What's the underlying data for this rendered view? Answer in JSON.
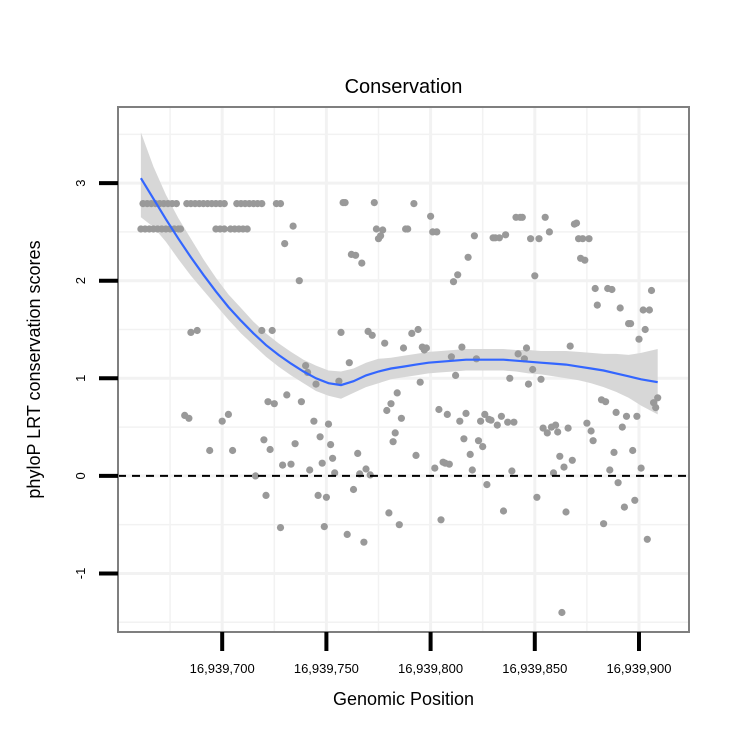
{
  "chart_data": {
    "type": "scatter",
    "title": "Conservation",
    "xlabel": "Genomic Position",
    "ylabel": "phyloP LRT conservation scores",
    "xlim": [
      16939650,
      16939924
    ],
    "ylim": [
      -1.6,
      3.78
    ],
    "x_ticks": [
      16939700,
      16939750,
      16939800,
      16939850,
      16939900
    ],
    "x_tick_labels": [
      "16,939,700",
      "16,939,750",
      "16,939,800",
      "16,939,850",
      "16,939,900"
    ],
    "y_ticks": [
      -1,
      0,
      1,
      2,
      3
    ],
    "y_tick_labels": [
      "-1",
      "0",
      "1",
      "2",
      "3"
    ],
    "reference_line": {
      "y": 0,
      "style": "dashed"
    },
    "grid": true,
    "colors": {
      "points": "#999999",
      "smooth": "#3366ff",
      "ribbon": "#d5d5d5",
      "grid": "#f2f2f2",
      "frame": "#7f7f7f"
    },
    "points": [
      [
        16939661,
        2.53
      ],
      [
        16939662,
        2.79
      ],
      [
        16939663,
        2.53
      ],
      [
        16939664,
        2.79
      ],
      [
        16939665,
        2.53
      ],
      [
        16939666,
        2.79
      ],
      [
        16939667,
        2.53
      ],
      [
        16939668,
        2.79
      ],
      [
        16939669,
        2.53
      ],
      [
        16939670,
        2.79
      ],
      [
        16939671,
        2.53
      ],
      [
        16939672,
        2.79
      ],
      [
        16939673,
        2.53
      ],
      [
        16939674,
        2.79
      ],
      [
        16939675,
        2.53
      ],
      [
        16939676,
        2.79
      ],
      [
        16939677,
        2.53
      ],
      [
        16939678,
        2.79
      ],
      [
        16939679,
        2.53
      ],
      [
        16939680,
        2.53
      ],
      [
        16939683,
        2.79
      ],
      [
        16939685,
        2.79
      ],
      [
        16939687,
        2.79
      ],
      [
        16939689,
        2.79
      ],
      [
        16939691,
        2.79
      ],
      [
        16939693,
        2.79
      ],
      [
        16939695,
        2.79
      ],
      [
        16939697,
        2.79
      ],
      [
        16939699,
        2.79
      ],
      [
        16939701,
        2.79
      ],
      [
        16939697,
        2.53
      ],
      [
        16939699,
        2.53
      ],
      [
        16939701,
        2.53
      ],
      [
        16939704,
        2.53
      ],
      [
        16939706,
        2.53
      ],
      [
        16939708,
        2.53
      ],
      [
        16939710,
        2.53
      ],
      [
        16939712,
        2.53
      ],
      [
        16939707,
        2.79
      ],
      [
        16939709,
        2.79
      ],
      [
        16939711,
        2.79
      ],
      [
        16939713,
        2.79
      ],
      [
        16939715,
        2.79
      ],
      [
        16939717,
        2.79
      ],
      [
        16939719,
        2.79
      ],
      [
        16939726,
        2.79
      ],
      [
        16939728,
        2.79
      ],
      [
        16939682,
        0.62
      ],
      [
        16939684,
        0.59
      ],
      [
        16939685,
        1.47
      ],
      [
        16939688,
        1.49
      ],
      [
        16939694,
        0.26
      ],
      [
        16939700,
        0.56
      ],
      [
        16939703,
        0.63
      ],
      [
        16939705,
        0.26
      ],
      [
        16939716,
        0.0
      ],
      [
        16939719,
        1.49
      ],
      [
        16939720,
        0.37
      ],
      [
        16939721,
        -0.2
      ],
      [
        16939722,
        0.76
      ],
      [
        16939723,
        0.27
      ],
      [
        16939724,
        1.49
      ],
      [
        16939725,
        0.74
      ],
      [
        16939728,
        -0.53
      ],
      [
        16939729,
        0.11
      ],
      [
        16939730,
        2.38
      ],
      [
        16939731,
        0.83
      ],
      [
        16939733,
        0.12
      ],
      [
        16939734,
        2.56
      ],
      [
        16939735,
        0.33
      ],
      [
        16939737,
        2.0
      ],
      [
        16939738,
        0.76
      ],
      [
        16939740,
        1.13
      ],
      [
        16939741,
        1.06
      ],
      [
        16939742,
        0.06
      ],
      [
        16939744,
        0.56
      ],
      [
        16939745,
        0.94
      ],
      [
        16939746,
        -0.2
      ],
      [
        16939747,
        0.4
      ],
      [
        16939748,
        0.13
      ],
      [
        16939749,
        -0.52
      ],
      [
        16939750,
        -0.22
      ],
      [
        16939751,
        0.53
      ],
      [
        16939752,
        0.32
      ],
      [
        16939753,
        0.18
      ],
      [
        16939754,
        0.03
      ],
      [
        16939756,
        0.97
      ],
      [
        16939757,
        1.47
      ],
      [
        16939758,
        2.8
      ],
      [
        16939759,
        2.8
      ],
      [
        16939760,
        -0.6
      ],
      [
        16939761,
        1.16
      ],
      [
        16939762,
        2.27
      ],
      [
        16939763,
        -0.14
      ],
      [
        16939764,
        2.26
      ],
      [
        16939765,
        0.23
      ],
      [
        16939766,
        0.02
      ],
      [
        16939767,
        2.18
      ],
      [
        16939768,
        -0.68
      ],
      [
        16939769,
        0.07
      ],
      [
        16939770,
        1.48
      ],
      [
        16939771,
        0.01
      ],
      [
        16939772,
        1.44
      ],
      [
        16939773,
        2.8
      ],
      [
        16939774,
        2.53
      ],
      [
        16939775,
        2.43
      ],
      [
        16939776,
        2.46
      ],
      [
        16939777,
        2.52
      ],
      [
        16939778,
        1.36
      ],
      [
        16939779,
        0.67
      ],
      [
        16939780,
        -0.38
      ],
      [
        16939781,
        0.74
      ],
      [
        16939782,
        0.35
      ],
      [
        16939783,
        0.44
      ],
      [
        16939784,
        0.85
      ],
      [
        16939785,
        -0.5
      ],
      [
        16939786,
        0.59
      ],
      [
        16939787,
        1.31
      ],
      [
        16939788,
        2.53
      ],
      [
        16939789,
        2.53
      ],
      [
        16939791,
        1.46
      ],
      [
        16939792,
        2.79
      ],
      [
        16939793,
        0.21
      ],
      [
        16939794,
        1.5
      ],
      [
        16939795,
        0.96
      ],
      [
        16939796,
        1.32
      ],
      [
        16939797,
        1.29
      ],
      [
        16939798,
        1.31
      ],
      [
        16939800,
        2.66
      ],
      [
        16939801,
        2.5
      ],
      [
        16939802,
        0.08
      ],
      [
        16939803,
        2.5
      ],
      [
        16939804,
        0.68
      ],
      [
        16939805,
        -0.45
      ],
      [
        16939806,
        0.14
      ],
      [
        16939807,
        0.13
      ],
      [
        16939808,
        0.63
      ],
      [
        16939809,
        0.12
      ],
      [
        16939810,
        1.22
      ],
      [
        16939811,
        1.99
      ],
      [
        16939812,
        1.03
      ],
      [
        16939813,
        2.06
      ],
      [
        16939814,
        0.56
      ],
      [
        16939815,
        1.32
      ],
      [
        16939816,
        0.38
      ],
      [
        16939817,
        0.64
      ],
      [
        16939818,
        2.24
      ],
      [
        16939819,
        0.22
      ],
      [
        16939820,
        0.06
      ],
      [
        16939821,
        2.46
      ],
      [
        16939822,
        1.2
      ],
      [
        16939823,
        0.36
      ],
      [
        16939824,
        0.56
      ],
      [
        16939825,
        0.3
      ],
      [
        16939826,
        0.63
      ],
      [
        16939827,
        -0.09
      ],
      [
        16939828,
        0.58
      ],
      [
        16939829,
        0.57
      ],
      [
        16939830,
        2.44
      ],
      [
        16939831,
        2.44
      ],
      [
        16939832,
        0.52
      ],
      [
        16939833,
        2.44
      ],
      [
        16939834,
        0.61
      ],
      [
        16939835,
        -0.36
      ],
      [
        16939836,
        2.47
      ],
      [
        16939837,
        0.55
      ],
      [
        16939838,
        1.0
      ],
      [
        16939839,
        0.05
      ],
      [
        16939840,
        0.55
      ],
      [
        16939841,
        2.65
      ],
      [
        16939842,
        1.25
      ],
      [
        16939843,
        2.65
      ],
      [
        16939844,
        2.65
      ],
      [
        16939845,
        1.2
      ],
      [
        16939846,
        1.31
      ],
      [
        16939847,
        0.94
      ],
      [
        16939848,
        2.43
      ],
      [
        16939849,
        1.09
      ],
      [
        16939850,
        2.05
      ],
      [
        16939851,
        -0.22
      ],
      [
        16939852,
        2.43
      ],
      [
        16939853,
        0.99
      ],
      [
        16939854,
        0.49
      ],
      [
        16939855,
        2.65
      ],
      [
        16939856,
        0.44
      ],
      [
        16939857,
        2.5
      ],
      [
        16939858,
        0.5
      ],
      [
        16939859,
        0.03
      ],
      [
        16939860,
        0.52
      ],
      [
        16939861,
        0.45
      ],
      [
        16939862,
        0.2
      ],
      [
        16939863,
        -1.4
      ],
      [
        16939864,
        0.09
      ],
      [
        16939865,
        -0.37
      ],
      [
        16939866,
        0.49
      ],
      [
        16939867,
        1.33
      ],
      [
        16939868,
        0.16
      ],
      [
        16939869,
        2.58
      ],
      [
        16939870,
        2.59
      ],
      [
        16939871,
        2.43
      ],
      [
        16939872,
        2.23
      ],
      [
        16939873,
        2.43
      ],
      [
        16939874,
        2.21
      ],
      [
        16939875,
        0.54
      ],
      [
        16939876,
        2.43
      ],
      [
        16939877,
        0.46
      ],
      [
        16939878,
        0.36
      ],
      [
        16939879,
        1.92
      ],
      [
        16939880,
        1.75
      ],
      [
        16939882,
        0.78
      ],
      [
        16939883,
        -0.49
      ],
      [
        16939884,
        0.76
      ],
      [
        16939885,
        1.92
      ],
      [
        16939886,
        0.06
      ],
      [
        16939887,
        1.91
      ],
      [
        16939888,
        0.24
      ],
      [
        16939889,
        0.65
      ],
      [
        16939890,
        -0.07
      ],
      [
        16939891,
        1.72
      ],
      [
        16939892,
        0.5
      ],
      [
        16939893,
        -0.32
      ],
      [
        16939894,
        0.61
      ],
      [
        16939895,
        1.56
      ],
      [
        16939896,
        1.56
      ],
      [
        16939897,
        0.26
      ],
      [
        16939898,
        -0.25
      ],
      [
        16939899,
        0.61
      ],
      [
        16939900,
        1.4
      ],
      [
        16939901,
        0.08
      ],
      [
        16939902,
        1.7
      ],
      [
        16939903,
        1.5
      ],
      [
        16939904,
        -0.65
      ],
      [
        16939905,
        1.7
      ],
      [
        16939906,
        1.9
      ],
      [
        16939907,
        0.75
      ],
      [
        16939908,
        0.7
      ],
      [
        16939909,
        0.8
      ]
    ],
    "smooth_x": [
      16939661,
      16939667,
      16939673,
      16939679,
      16939685,
      16939691,
      16939697,
      16939703,
      16939709,
      16939715,
      16939721,
      16939727,
      16939733,
      16939739,
      16939745,
      16939751,
      16939757,
      16939763,
      16939769,
      16939775,
      16939781,
      16939787,
      16939793,
      16939799,
      16939805,
      16939811,
      16939817,
      16939823,
      16939829,
      16939835,
      16939841,
      16939847,
      16939853,
      16939859,
      16939865,
      16939871,
      16939877,
      16939883,
      16939889,
      16939895,
      16939901,
      16939909
    ],
    "smooth_y": [
      3.05,
      2.84,
      2.63,
      2.43,
      2.24,
      2.06,
      1.89,
      1.73,
      1.59,
      1.46,
      1.34,
      1.24,
      1.15,
      1.07,
      1.0,
      0.95,
      0.93,
      0.97,
      1.03,
      1.07,
      1.1,
      1.12,
      1.14,
      1.16,
      1.17,
      1.18,
      1.19,
      1.19,
      1.19,
      1.19,
      1.18,
      1.17,
      1.16,
      1.15,
      1.14,
      1.12,
      1.1,
      1.08,
      1.05,
      1.02,
      0.99,
      0.96
    ],
    "smooth_lower": [
      2.65,
      2.55,
      2.4,
      2.22,
      2.05,
      1.9,
      1.75,
      1.6,
      1.46,
      1.34,
      1.22,
      1.12,
      1.03,
      0.95,
      0.87,
      0.82,
      0.79,
      0.85,
      0.91,
      0.95,
      0.99,
      1.01,
      1.03,
      1.05,
      1.06,
      1.07,
      1.08,
      1.08,
      1.08,
      1.08,
      1.07,
      1.05,
      1.04,
      1.02,
      1.0,
      0.98,
      0.95,
      0.91,
      0.86,
      0.8,
      0.72,
      0.63
    ],
    "smooth_upper": [
      3.52,
      3.17,
      2.88,
      2.64,
      2.43,
      2.22,
      2.03,
      1.86,
      1.72,
      1.58,
      1.46,
      1.36,
      1.27,
      1.19,
      1.13,
      1.08,
      1.07,
      1.1,
      1.16,
      1.2,
      1.21,
      1.23,
      1.25,
      1.27,
      1.28,
      1.29,
      1.3,
      1.3,
      1.3,
      1.3,
      1.29,
      1.29,
      1.28,
      1.28,
      1.28,
      1.27,
      1.26,
      1.25,
      1.25,
      1.24,
      1.26,
      1.3
    ]
  }
}
